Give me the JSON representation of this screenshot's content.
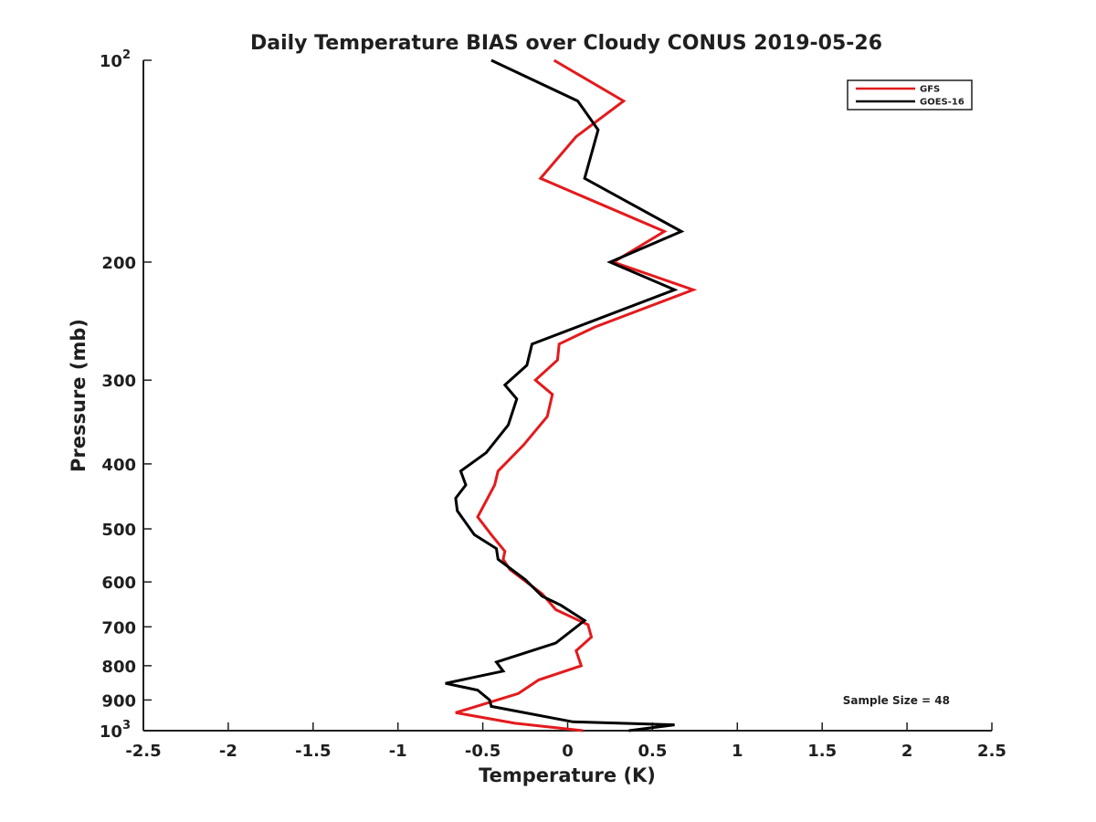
{
  "chart_data": {
    "type": "line",
    "title": "Daily Temperature BIAS over Cloudy CONUS 2019-05-26",
    "xlabel": "Temperature (K)",
    "ylabel": "Pressure (mb)",
    "xlim": [
      -2.5,
      2.5
    ],
    "ylim": [
      100,
      1000
    ],
    "y_scale": "log",
    "y_reversed": true,
    "grid": false,
    "x_ticks": [
      {
        "value": -2.5,
        "label": "-2.5"
      },
      {
        "value": -2,
        "label": "-2"
      },
      {
        "value": -1.5,
        "label": "-1.5"
      },
      {
        "value": -1,
        "label": "-1"
      },
      {
        "value": -0.5,
        "label": "-0.5"
      },
      {
        "value": 0,
        "label": "0"
      },
      {
        "value": 0.5,
        "label": "0.5"
      },
      {
        "value": 1,
        "label": "1"
      },
      {
        "value": 1.5,
        "label": "1.5"
      },
      {
        "value": 2,
        "label": "2"
      },
      {
        "value": 2.5,
        "label": "2.5"
      }
    ],
    "y_ticks": [
      {
        "value": 100,
        "label": "10",
        "sup": "2"
      },
      {
        "value": 200,
        "label": "200"
      },
      {
        "value": 300,
        "label": "300"
      },
      {
        "value": 400,
        "label": "400"
      },
      {
        "value": 500,
        "label": "500"
      },
      {
        "value": 600,
        "label": "600"
      },
      {
        "value": 700,
        "label": "700"
      },
      {
        "value": 800,
        "label": "800"
      },
      {
        "value": 900,
        "label": "900"
      },
      {
        "value": 1000,
        "label": "10",
        "sup": "3"
      }
    ],
    "legend_position": "top-right",
    "annotation": "Sample Size = 48",
    "series": [
      {
        "name": "GFS",
        "color": "#e41a1c",
        "points": [
          [
            -0.08,
            100
          ],
          [
            0.33,
            115
          ],
          [
            0.05,
            130
          ],
          [
            -0.16,
            150
          ],
          [
            0.57,
            180
          ],
          [
            0.27,
            200
          ],
          [
            0.74,
            220
          ],
          [
            0.16,
            250
          ],
          [
            -0.05,
            265
          ],
          [
            -0.06,
            280
          ],
          [
            -0.19,
            300
          ],
          [
            -0.09,
            315
          ],
          [
            -0.12,
            340
          ],
          [
            -0.26,
            375
          ],
          [
            -0.41,
            410
          ],
          [
            -0.43,
            430
          ],
          [
            -0.53,
            480
          ],
          [
            -0.45,
            510
          ],
          [
            -0.37,
            540
          ],
          [
            -0.38,
            555
          ],
          [
            -0.34,
            575
          ],
          [
            -0.15,
            625
          ],
          [
            -0.07,
            660
          ],
          [
            0.12,
            695
          ],
          [
            0.14,
            725
          ],
          [
            0.05,
            760
          ],
          [
            0.08,
            800
          ],
          [
            -0.17,
            840
          ],
          [
            -0.29,
            880
          ],
          [
            -0.66,
            940
          ],
          [
            -0.31,
            975
          ],
          [
            0.09,
            1000
          ]
        ]
      },
      {
        "name": "GOES-16",
        "color": "#000000",
        "points": [
          [
            -0.45,
            100
          ],
          [
            0.06,
            115
          ],
          [
            0.18,
            127
          ],
          [
            0.1,
            150
          ],
          [
            0.67,
            180
          ],
          [
            0.25,
            200
          ],
          [
            0.63,
            220
          ],
          [
            -0.21,
            265
          ],
          [
            -0.24,
            285
          ],
          [
            -0.37,
            305
          ],
          [
            -0.3,
            320
          ],
          [
            -0.35,
            350
          ],
          [
            -0.48,
            385
          ],
          [
            -0.63,
            410
          ],
          [
            -0.6,
            430
          ],
          [
            -0.66,
            450
          ],
          [
            -0.65,
            470
          ],
          [
            -0.55,
            510
          ],
          [
            -0.42,
            535
          ],
          [
            -0.41,
            555
          ],
          [
            -0.25,
            595
          ],
          [
            -0.15,
            630
          ],
          [
            -0.04,
            650
          ],
          [
            0.1,
            685
          ],
          [
            -0.07,
            740
          ],
          [
            -0.42,
            790
          ],
          [
            -0.38,
            815
          ],
          [
            -0.72,
            850
          ],
          [
            -0.53,
            870
          ],
          [
            -0.46,
            900
          ],
          [
            -0.45,
            920
          ],
          [
            0.03,
            970
          ],
          [
            0.63,
            980
          ],
          [
            0.36,
            1000
          ]
        ]
      }
    ]
  }
}
